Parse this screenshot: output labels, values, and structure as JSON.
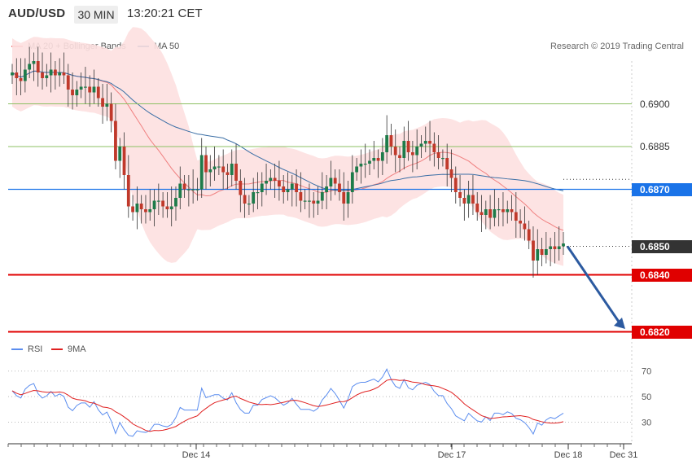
{
  "header": {
    "symbol": "AUD/USD",
    "timeframe": "30 MIN",
    "time": "13:20:21 CET"
  },
  "legend_main": [
    {
      "name": "MA 20 + Bollinger Bands",
      "color": "#f08080"
    },
    {
      "name": "MA 50",
      "color": "#3a6ea5"
    }
  ],
  "credit": "Research © 2019 Trading Central",
  "legend_rsi": [
    {
      "name": "RSI",
      "color": "#5b8def"
    },
    {
      "name": "9MA",
      "color": "#e02020"
    }
  ],
  "colors": {
    "up": "#1e7b4a",
    "down": "#c0392b",
    "support": "#e00000",
    "current": "#1a73e8",
    "price": "#333333",
    "arrow": "#2c5aa0",
    "resistance": "#8cc063"
  },
  "chart_data": {
    "type": "candlestick",
    "y_range": [
      0.6815,
      0.6915
    ],
    "x_ticks": [
      "Dec 14",
      "Dec 17",
      "Dec 18",
      "Dec 31"
    ],
    "y_ticks": [
      "0.6900",
      "0.6885"
    ],
    "levels": [
      {
        "value": 0.69,
        "label": "0.6900",
        "kind": "resistance"
      },
      {
        "value": 0.6885,
        "label": "0.6885",
        "kind": "resistance"
      },
      {
        "value": 0.687,
        "label": "0.6870",
        "kind": "current"
      },
      {
        "value": 0.685,
        "label": "0.6850",
        "kind": "price"
      },
      {
        "value": 0.684,
        "label": "0.6840",
        "kind": "support"
      },
      {
        "value": 0.682,
        "label": "0.6820",
        "kind": "support"
      }
    ],
    "closes": [
      0.6911,
      0.6909,
      0.6908,
      0.6912,
      0.6914,
      0.6915,
      0.6911,
      0.6909,
      0.691,
      0.6912,
      0.691,
      0.6911,
      0.691,
      0.6905,
      0.6903,
      0.6905,
      0.6906,
      0.6906,
      0.6904,
      0.6906,
      0.6902,
      0.6899,
      0.69,
      0.6894,
      0.688,
      0.6885,
      0.6875,
      0.6864,
      0.6862,
      0.6865,
      0.6863,
      0.6862,
      0.6863,
      0.6866,
      0.6866,
      0.6864,
      0.6863,
      0.6864,
      0.6867,
      0.6872,
      0.687,
      0.687,
      0.687,
      0.687,
      0.6882,
      0.6876,
      0.6877,
      0.6878,
      0.6878,
      0.6876,
      0.6875,
      0.6879,
      0.6873,
      0.6868,
      0.6865,
      0.6865,
      0.6869,
      0.6869,
      0.6872,
      0.6873,
      0.6874,
      0.6873,
      0.6871,
      0.6869,
      0.687,
      0.6872,
      0.6869,
      0.6866,
      0.6866,
      0.6866,
      0.6865,
      0.6866,
      0.6869,
      0.6871,
      0.6874,
      0.6872,
      0.6869,
      0.6865,
      0.6869,
      0.6876,
      0.6878,
      0.6879,
      0.6879,
      0.688,
      0.6881,
      0.688,
      0.6883,
      0.6889,
      0.6885,
      0.6882,
      0.6881,
      0.6887,
      0.6883,
      0.6882,
      0.6885,
      0.6886,
      0.6887,
      0.6886,
      0.6883,
      0.6881,
      0.6881,
      0.6877,
      0.6874,
      0.6869,
      0.6867,
      0.6865,
      0.6868,
      0.6865,
      0.6862,
      0.6861,
      0.6863,
      0.686,
      0.6863,
      0.6863,
      0.6862,
      0.6863,
      0.6862,
      0.6859,
      0.6858,
      0.6856,
      0.6852,
      0.6845,
      0.6849,
      0.6847,
      0.6849,
      0.685,
      0.6849,
      0.685,
      0.6851
    ],
    "rsi": {
      "range": [
        15,
        80
      ],
      "ticks": [
        70,
        50,
        30
      ]
    }
  }
}
